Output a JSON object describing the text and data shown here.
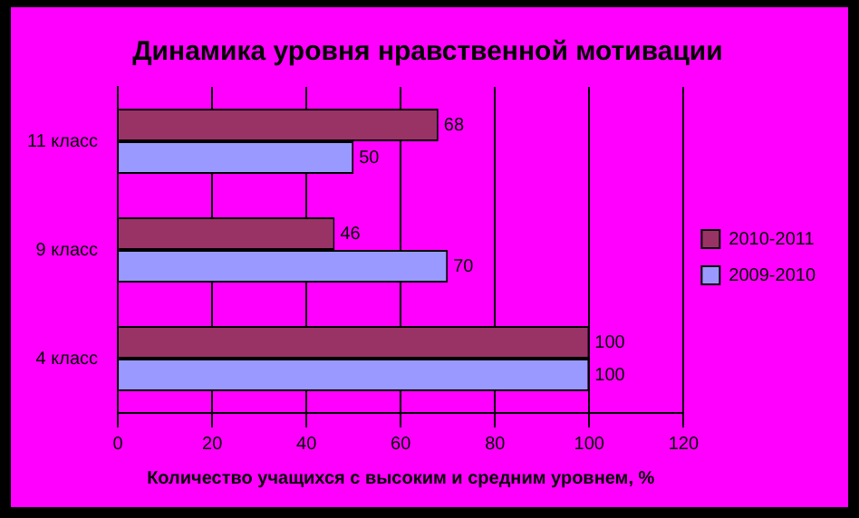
{
  "chart_data": {
    "type": "bar",
    "orientation": "horizontal",
    "title": "Динамика уровня нравственной мотивации",
    "xlabel": "Количество учащихся с высоким и средним уровнем, %",
    "categories": [
      "11 класс",
      "9 класс",
      "4 класс"
    ],
    "series": [
      {
        "name": "2010-2011",
        "color": "#993366",
        "values": [
          68,
          46,
          100
        ]
      },
      {
        "name": "2009-2010",
        "color": "#9999ff",
        "values": [
          50,
          70,
          100
        ]
      }
    ],
    "xlim": [
      0,
      120
    ],
    "xticks": [
      0,
      20,
      40,
      60,
      80,
      100,
      120
    ],
    "grid": "x",
    "legend": "right",
    "data_labels": true
  }
}
